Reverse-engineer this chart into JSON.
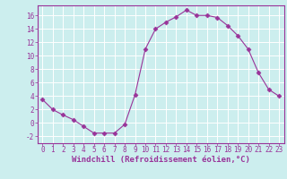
{
  "x": [
    0,
    1,
    2,
    3,
    4,
    5,
    6,
    7,
    8,
    9,
    10,
    11,
    12,
    13,
    14,
    15,
    16,
    17,
    18,
    19,
    20,
    21,
    22,
    23
  ],
  "y": [
    3.5,
    2.0,
    1.2,
    0.5,
    -0.5,
    -1.5,
    -1.5,
    -1.5,
    -0.2,
    4.2,
    11.0,
    14.0,
    15.0,
    15.8,
    16.8,
    16.0,
    16.0,
    15.7,
    14.5,
    13.0,
    11.0,
    7.5,
    5.0,
    4.0
  ],
  "line_color": "#993399",
  "marker": "D",
  "marker_size": 2.5,
  "bg_color": "#cceeee",
  "grid_color": "#ffffff",
  "xlabel": "Windchill (Refroidissement éolien,°C)",
  "xlim": [
    -0.5,
    23.5
  ],
  "ylim": [
    -3,
    17.5
  ],
  "yticks": [
    -2,
    0,
    2,
    4,
    6,
    8,
    10,
    12,
    14,
    16
  ],
  "xticks": [
    0,
    1,
    2,
    3,
    4,
    5,
    6,
    7,
    8,
    9,
    10,
    11,
    12,
    13,
    14,
    15,
    16,
    17,
    18,
    19,
    20,
    21,
    22,
    23
  ],
  "tick_color": "#993399",
  "label_fontsize": 6.5,
  "tick_fontsize": 5.5,
  "spine_color": "#993399",
  "linewidth": 0.8
}
